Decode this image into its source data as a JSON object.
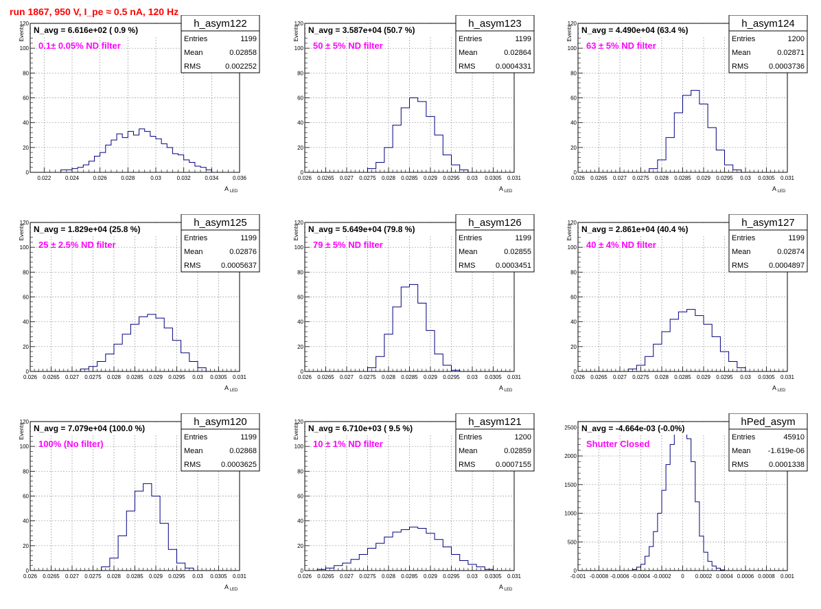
{
  "header": {
    "title": "run 1867,   950 V, I_pe ≈ 0.5 nA, 120 Hz"
  },
  "colors": {
    "title": "#ff0000",
    "annotation": "#ff00ff",
    "histogram": "#000080",
    "grid": "#999999"
  },
  "chart_data": [
    {
      "type": "histogram",
      "name": "h_asym122",
      "navg": "N_avg = 6.616e+02 ( 0.9 %)",
      "note": "0.1± 0.05% ND filter",
      "stats": {
        "entries": "1199",
        "mean": "0.02858",
        "rms": "0.002252"
      },
      "xlabel": "A",
      "xlabel_sub": "LED",
      "ylabel": "Events",
      "xlim": [
        0.021,
        0.036
      ],
      "ylim": [
        0,
        120
      ],
      "xticks": [
        0.022,
        0.024,
        0.026,
        0.028,
        0.03,
        0.032,
        0.034,
        0.036
      ],
      "xtick_labels": [
        "0.022",
        "0.024",
        "0.026",
        "0.028",
        "0.03",
        "0.032",
        "0.034",
        "0.036"
      ],
      "yticks": [
        0,
        20,
        40,
        60,
        80,
        100,
        120
      ],
      "ytick_labels": [
        "0",
        "20",
        "40",
        "60",
        "80",
        "100",
        "120"
      ],
      "bin_edges": [
        0.0232,
        0.0236,
        0.024,
        0.0244,
        0.0248,
        0.0252,
        0.0256,
        0.026,
        0.0264,
        0.0268,
        0.0272,
        0.0276,
        0.028,
        0.0284,
        0.0288,
        0.0292,
        0.0296,
        0.03,
        0.0304,
        0.0308,
        0.0312,
        0.0316,
        0.032,
        0.0324,
        0.0328,
        0.0332,
        0.0336,
        0.034
      ],
      "counts": [
        2,
        2,
        3,
        4,
        6,
        9,
        13,
        16,
        22,
        26,
        31,
        28,
        33,
        30,
        35,
        33,
        29,
        27,
        23,
        20,
        15,
        14,
        10,
        8,
        5,
        4,
        2
      ]
    },
    {
      "type": "histogram",
      "name": "h_asym123",
      "navg": "N_avg = 3.587e+04 (50.7 %)",
      "note": "50 ± 5% ND filter",
      "stats": {
        "entries": "1199",
        "mean": "0.02864",
        "rms": "0.0004331"
      },
      "xlabel": "A",
      "xlabel_sub": "LED",
      "ylabel": "Events",
      "xlim": [
        0.026,
        0.031
      ],
      "ylim": [
        0,
        120
      ],
      "xticks": [
        0.026,
        0.0265,
        0.027,
        0.0275,
        0.028,
        0.0285,
        0.029,
        0.0295,
        0.03,
        0.0305,
        0.031
      ],
      "xtick_labels": [
        "0.026",
        "0.0265",
        "0.027",
        "0.0275",
        "0.028",
        "0.0285",
        "0.029",
        "0.0295",
        "0.03",
        "0.0305",
        "0.031"
      ],
      "yticks": [
        0,
        20,
        40,
        60,
        80,
        100,
        120
      ],
      "ytick_labels": [
        "0",
        "20",
        "40",
        "60",
        "80",
        "100",
        "120"
      ],
      "bin_edges": [
        0.0275,
        0.0277,
        0.0279,
        0.0281,
        0.0283,
        0.0285,
        0.0287,
        0.0289,
        0.0291,
        0.0293,
        0.0295,
        0.0297,
        0.0299
      ],
      "counts": [
        3,
        8,
        20,
        38,
        52,
        60,
        57,
        45,
        30,
        14,
        6,
        2
      ]
    },
    {
      "type": "histogram",
      "name": "h_asym124",
      "navg": "N_avg = 4.490e+04 (63.4 %)",
      "note": "63 ± 5% ND filter",
      "stats": {
        "entries": "1200",
        "mean": "0.02871",
        "rms": "0.0003736"
      },
      "xlabel": "A",
      "xlabel_sub": "LED",
      "ylabel": "Events",
      "xlim": [
        0.026,
        0.031
      ],
      "ylim": [
        0,
        120
      ],
      "xticks": [
        0.026,
        0.0265,
        0.027,
        0.0275,
        0.028,
        0.0285,
        0.029,
        0.0295,
        0.03,
        0.0305,
        0.031
      ],
      "xtick_labels": [
        "0.026",
        "0.0265",
        "0.027",
        "0.0275",
        "0.028",
        "0.0285",
        "0.029",
        "0.0295",
        "0.03",
        "0.0305",
        "0.031"
      ],
      "yticks": [
        0,
        20,
        40,
        60,
        80,
        100,
        120
      ],
      "ytick_labels": [
        "0",
        "20",
        "40",
        "60",
        "80",
        "100",
        "120"
      ],
      "bin_edges": [
        0.0277,
        0.0279,
        0.0281,
        0.0283,
        0.0285,
        0.0287,
        0.0289,
        0.0291,
        0.0293,
        0.0295,
        0.0297,
        0.0299
      ],
      "counts": [
        3,
        10,
        28,
        48,
        62,
        66,
        55,
        36,
        18,
        6,
        2
      ]
    },
    {
      "type": "histogram",
      "name": "h_asym125",
      "navg": "N_avg = 1.829e+04 (25.8 %)",
      "note": "25 ± 2.5% ND filter",
      "stats": {
        "entries": "1199",
        "mean": "0.02876",
        "rms": "0.0005637"
      },
      "xlabel": "A",
      "xlabel_sub": "LED",
      "ylabel": "Events",
      "xlim": [
        0.026,
        0.031
      ],
      "ylim": [
        0,
        120
      ],
      "xticks": [
        0.026,
        0.0265,
        0.027,
        0.0275,
        0.028,
        0.0285,
        0.029,
        0.0295,
        0.03,
        0.0305,
        0.031
      ],
      "xtick_labels": [
        "0.026",
        "0.0265",
        "0.027",
        "0.0275",
        "0.028",
        "0.0285",
        "0.029",
        "0.0295",
        "0.03",
        "0.0305",
        "0.031"
      ],
      "yticks": [
        0,
        20,
        40,
        60,
        80,
        100,
        120
      ],
      "ytick_labels": [
        "0",
        "20",
        "40",
        "60",
        "80",
        "100",
        "120"
      ],
      "bin_edges": [
        0.0272,
        0.0274,
        0.0276,
        0.0278,
        0.028,
        0.0282,
        0.0284,
        0.0286,
        0.0288,
        0.029,
        0.0292,
        0.0294,
        0.0296,
        0.0298,
        0.03,
        0.0302
      ],
      "counts": [
        2,
        4,
        8,
        14,
        22,
        30,
        38,
        44,
        46,
        43,
        35,
        25,
        15,
        8,
        3
      ]
    },
    {
      "type": "histogram",
      "name": "h_asym126",
      "navg": "N_avg = 5.649e+04 (79.8 %)",
      "note": "79 ± 5% ND filter",
      "stats": {
        "entries": "1199",
        "mean": "0.02855",
        "rms": "0.0003451"
      },
      "xlabel": "A",
      "xlabel_sub": "LED",
      "ylabel": "Events",
      "xlim": [
        0.026,
        0.031
      ],
      "ylim": [
        0,
        120
      ],
      "xticks": [
        0.026,
        0.0265,
        0.027,
        0.0275,
        0.028,
        0.0285,
        0.029,
        0.0295,
        0.03,
        0.0305,
        0.031
      ],
      "xtick_labels": [
        "0.026",
        "0.0265",
        "0.027",
        "0.0275",
        "0.028",
        "0.0285",
        "0.029",
        "0.0295",
        "0.03",
        "0.0305",
        "0.031"
      ],
      "yticks": [
        0,
        20,
        40,
        60,
        80,
        100,
        120
      ],
      "ytick_labels": [
        "0",
        "20",
        "40",
        "60",
        "80",
        "100",
        "120"
      ],
      "bin_edges": [
        0.0275,
        0.0277,
        0.0279,
        0.0281,
        0.0283,
        0.0285,
        0.0287,
        0.0289,
        0.0291,
        0.0293,
        0.0295,
        0.0297
      ],
      "counts": [
        3,
        12,
        30,
        52,
        68,
        70,
        55,
        33,
        14,
        5,
        1
      ]
    },
    {
      "type": "histogram",
      "name": "h_asym127",
      "navg": "N_avg = 2.861e+04 (40.4 %)",
      "note": "40 ± 4% ND filter",
      "stats": {
        "entries": "1199",
        "mean": "0.02874",
        "rms": "0.0004897"
      },
      "xlabel": "A",
      "xlabel_sub": "LED",
      "ylabel": "Events",
      "xlim": [
        0.026,
        0.031
      ],
      "ylim": [
        0,
        120
      ],
      "xticks": [
        0.026,
        0.0265,
        0.027,
        0.0275,
        0.028,
        0.0285,
        0.029,
        0.0295,
        0.03,
        0.0305,
        0.031
      ],
      "xtick_labels": [
        "0.026",
        "0.0265",
        "0.027",
        "0.0275",
        "0.028",
        "0.0285",
        "0.029",
        "0.0295",
        "0.03",
        "0.0305",
        "0.031"
      ],
      "yticks": [
        0,
        20,
        40,
        60,
        80,
        100,
        120
      ],
      "ytick_labels": [
        "0",
        "20",
        "40",
        "60",
        "80",
        "100",
        "120"
      ],
      "bin_edges": [
        0.0272,
        0.0274,
        0.0276,
        0.0278,
        0.028,
        0.0282,
        0.0284,
        0.0286,
        0.0288,
        0.029,
        0.0292,
        0.0294,
        0.0296,
        0.0298,
        0.03
      ],
      "counts": [
        2,
        5,
        12,
        22,
        32,
        42,
        48,
        50,
        45,
        38,
        28,
        16,
        8,
        3
      ]
    },
    {
      "type": "histogram",
      "name": "h_asym120",
      "navg": "N_avg = 7.079e+04 (100.0 %)",
      "note": "100% (No filter)",
      "stats": {
        "entries": "1199",
        "mean": "0.02868",
        "rms": "0.0003625"
      },
      "xlabel": "A",
      "xlabel_sub": "LED",
      "ylabel": "Events",
      "xlim": [
        0.026,
        0.031
      ],
      "ylim": [
        0,
        120
      ],
      "xticks": [
        0.026,
        0.0265,
        0.027,
        0.0275,
        0.028,
        0.0285,
        0.029,
        0.0295,
        0.03,
        0.0305,
        0.031
      ],
      "xtick_labels": [
        "0.026",
        "0.0265",
        "0.027",
        "0.0275",
        "0.028",
        "0.0285",
        "0.029",
        "0.0295",
        "0.03",
        "0.0305",
        "0.031"
      ],
      "yticks": [
        0,
        20,
        40,
        60,
        80,
        100,
        120
      ],
      "ytick_labels": [
        "0",
        "20",
        "40",
        "60",
        "80",
        "100",
        "120"
      ],
      "bin_edges": [
        0.0277,
        0.0279,
        0.0281,
        0.0283,
        0.0285,
        0.0287,
        0.0289,
        0.0291,
        0.0293,
        0.0295,
        0.0297,
        0.0299
      ],
      "counts": [
        3,
        10,
        28,
        48,
        64,
        70,
        60,
        38,
        17,
        6,
        2
      ]
    },
    {
      "type": "histogram",
      "name": "h_asym121",
      "navg": "N_avg = 6.710e+03 ( 9.5 %)",
      "note": "10 ± 1% ND filter",
      "stats": {
        "entries": "1200",
        "mean": "0.02859",
        "rms": "0.0007155"
      },
      "xlabel": "A",
      "xlabel_sub": "LED",
      "ylabel": "Events",
      "xlim": [
        0.026,
        0.031
      ],
      "ylim": [
        0,
        120
      ],
      "xticks": [
        0.026,
        0.0265,
        0.027,
        0.0275,
        0.028,
        0.0285,
        0.029,
        0.0295,
        0.03,
        0.0305,
        0.031
      ],
      "xtick_labels": [
        "0.026",
        "0.0265",
        "0.027",
        "0.0275",
        "0.028",
        "0.0285",
        "0.029",
        "0.0295",
        "0.03",
        "0.0305",
        "0.031"
      ],
      "yticks": [
        0,
        20,
        40,
        60,
        80,
        100,
        120
      ],
      "ytick_labels": [
        "0",
        "20",
        "40",
        "60",
        "80",
        "100",
        "120"
      ],
      "bin_edges": [
        0.0263,
        0.0265,
        0.0267,
        0.0269,
        0.0271,
        0.0273,
        0.0275,
        0.0277,
        0.0279,
        0.0281,
        0.0283,
        0.0285,
        0.0287,
        0.0289,
        0.0291,
        0.0293,
        0.0295,
        0.0297,
        0.0299,
        0.0301,
        0.0303,
        0.0305
      ],
      "counts": [
        1,
        2,
        4,
        6,
        9,
        13,
        18,
        22,
        27,
        31,
        33,
        35,
        34,
        30,
        25,
        19,
        13,
        8,
        5,
        3,
        1
      ]
    },
    {
      "type": "histogram",
      "name": "hPed_asym",
      "navg": "N_avg = -4.664e-03 (-0.0%)",
      "note": "Shutter Closed",
      "stats": {
        "entries": "45910",
        "mean": "-1.619e-06",
        "rms": "0.0001338"
      },
      "xlabel": "",
      "xlabel_sub": "",
      "ylabel": "",
      "xlim": [
        -0.001,
        0.001
      ],
      "ylim": [
        0,
        2600
      ],
      "xticks": [
        -0.001,
        -0.0008,
        -0.0006,
        -0.0004,
        -0.0002,
        0,
        0.0002,
        0.0004,
        0.0006,
        0.0008,
        0.001
      ],
      "xtick_labels": [
        "-0.001",
        "-0.0008",
        "-0.0006",
        "-0.0004",
        "-0.0002",
        "0",
        "0.0002",
        "0.0004",
        "0.0006",
        "0.0008",
        "0.001"
      ],
      "yticks": [
        0,
        500,
        1000,
        1500,
        2000,
        2500
      ],
      "ytick_labels": [
        "0",
        "500",
        "1000",
        "1500",
        "2000",
        "2500"
      ],
      "bin_edges": [
        -0.00048,
        -0.00044,
        -0.0004,
        -0.00036,
        -0.00032,
        -0.00028,
        -0.00024,
        -0.0002,
        -0.00016,
        -0.00012,
        -8e-05,
        -4e-05,
        0,
        4e-05,
        8e-05,
        0.00012,
        0.00016,
        0.0002,
        0.00024,
        0.00028,
        0.00032,
        0.00036,
        0.0004
      ],
      "counts": [
        20,
        60,
        110,
        250,
        420,
        680,
        1000,
        1400,
        1850,
        2200,
        2450,
        2600,
        2560,
        2300,
        1900,
        1200,
        600,
        320,
        160,
        80,
        40,
        10
      ]
    }
  ]
}
